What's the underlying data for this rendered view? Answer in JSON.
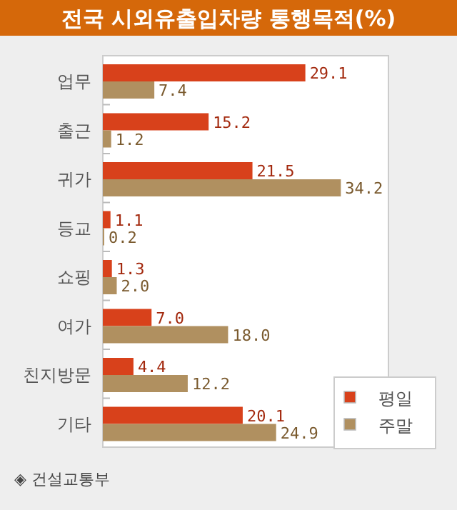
{
  "chart_data": {
    "type": "bar",
    "orientation": "horizontal",
    "title": "전국 시외유출입차량 통행목적(%)",
    "categories": [
      "업무",
      "출근",
      "귀가",
      "등교",
      "쇼핑",
      "여가",
      "친지방문",
      "기타"
    ],
    "series": [
      {
        "name": "평일",
        "color": "#d8411b",
        "values": [
          29.1,
          15.2,
          21.5,
          1.1,
          1.3,
          7.0,
          4.4,
          20.1
        ],
        "value_labels": [
          "29.1",
          "15.2",
          "21.5",
          "1.1",
          "1.3",
          "7.0",
          "4.4",
          "20.1"
        ]
      },
      {
        "name": "주말",
        "color": "#b09060",
        "values": [
          7.4,
          1.2,
          34.2,
          0.2,
          2.0,
          18.0,
          12.2,
          24.9
        ],
        "value_labels": [
          "7.4",
          "1.2",
          "34.2",
          "0.2",
          "2.0",
          "18.0",
          "12.2",
          "24.9"
        ]
      }
    ],
    "legend": "bottom right",
    "annotations": [
      "◈ 건설교통부"
    ]
  }
}
